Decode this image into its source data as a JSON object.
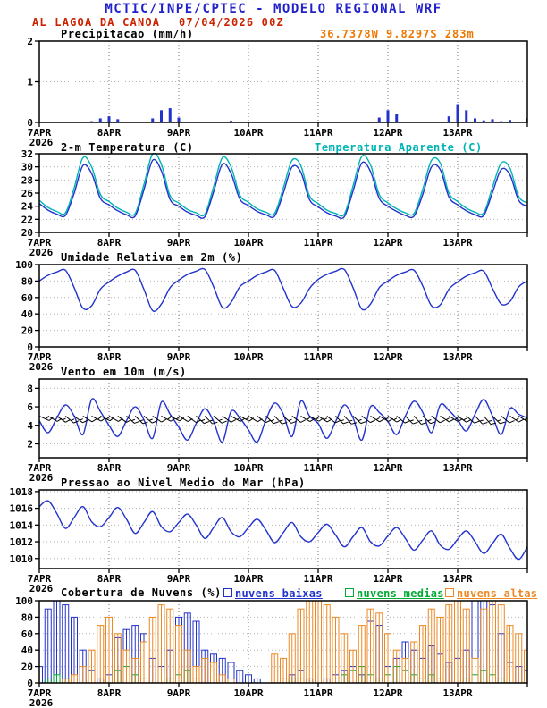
{
  "header": {
    "title": "MCTIC/INPE/CPTEC - MODELO REGIONAL WRF",
    "station": "AL LAGOA DA CANOA",
    "run": "07/04/2026 00Z",
    "location": "36.7378W 9.8297S 283m"
  },
  "colors": {
    "series_blue": "#2233cc",
    "apparent_cyan": "#00b4b4",
    "cloud_mid_green": "#00aa33",
    "cloud_high_orange": "#ee8822",
    "title_blue": "#2121cc",
    "station_red": "#cc2200",
    "run_red": "#cc2200",
    "location_orange": "#ee7700",
    "frame_black": "#000000"
  },
  "x_axis": {
    "day_labels": [
      "7APR",
      "8APR",
      "9APR",
      "10APR",
      "11APR",
      "12APR",
      "13APR"
    ],
    "year_label": "2026",
    "span_hours": 168,
    "step_hours": 3
  },
  "chart_data": [
    {
      "id": "precip",
      "type": "bar",
      "title": "Precipitacao (mm/h)",
      "ylim": [
        0,
        2
      ],
      "yticks": [
        0,
        1,
        2
      ],
      "values": [
        0,
        0,
        0,
        0,
        0,
        0,
        0.03,
        0.1,
        0.15,
        0.08,
        0,
        0,
        0,
        0.1,
        0.3,
        0.35,
        0.12,
        0,
        0,
        0,
        0,
        0,
        0.04,
        0,
        0,
        0,
        0,
        0,
        0,
        0,
        0,
        0,
        0,
        0,
        0,
        0,
        0,
        0,
        0,
        0.12,
        0.3,
        0.2,
        0,
        0,
        0,
        0,
        0,
        0.15,
        0.45,
        0.3,
        0.1,
        0.05,
        0.08,
        0.03,
        0.06,
        0.02,
        0.1
      ]
    },
    {
      "id": "temp",
      "type": "line",
      "title": "2-m Temperatura (C)",
      "legend": "Temperatura Aparente (C)",
      "ylim": [
        20,
        32
      ],
      "yticks": [
        20,
        22,
        24,
        26,
        28,
        30,
        32
      ],
      "series": [
        {
          "name": "2-m Temperatura (C)",
          "color": "#2233cc",
          "values": [
            24.4,
            23.4,
            22.8,
            22.6,
            26.0,
            30.2,
            29.0,
            25.2,
            24.2,
            23.3,
            22.7,
            22.5,
            26.5,
            31.0,
            29.4,
            25.0,
            24.0,
            23.1,
            22.6,
            22.4,
            26.2,
            30.4,
            29.0,
            25.1,
            24.1,
            23.2,
            22.7,
            22.5,
            26.0,
            30.0,
            29.2,
            25.0,
            23.9,
            23.0,
            22.5,
            22.4,
            26.3,
            30.6,
            29.3,
            25.2,
            24.0,
            23.2,
            22.6,
            22.5,
            25.8,
            30.0,
            29.6,
            25.4,
            24.2,
            23.3,
            22.7,
            22.6,
            26.1,
            29.6,
            28.8,
            24.9,
            24.0
          ]
        },
        {
          "name": "Temperatura Aparente (C)",
          "color": "#00b4b4",
          "values": [
            24.9,
            23.8,
            23.2,
            23.0,
            26.8,
            31.4,
            30.0,
            25.8,
            24.7,
            23.7,
            23.1,
            22.9,
            27.3,
            32.0,
            30.4,
            25.6,
            24.5,
            23.5,
            23.0,
            22.8,
            27.0,
            31.4,
            30.0,
            25.7,
            24.6,
            23.6,
            23.1,
            22.9,
            26.8,
            31.0,
            30.2,
            25.6,
            24.4,
            23.4,
            22.9,
            22.8,
            27.1,
            31.6,
            30.3,
            25.8,
            24.5,
            23.6,
            23.0,
            22.9,
            26.6,
            31.0,
            30.6,
            26.0,
            24.7,
            23.7,
            23.1,
            23.0,
            26.9,
            30.6,
            29.8,
            25.5,
            24.5
          ]
        }
      ]
    },
    {
      "id": "rh",
      "type": "line",
      "title": "Umidade Relativa em 2m (%)",
      "ylim": [
        0,
        100
      ],
      "yticks": [
        0,
        20,
        40,
        60,
        80,
        100
      ],
      "values": [
        80,
        87,
        91,
        93,
        72,
        47,
        50,
        70,
        79,
        86,
        91,
        93,
        70,
        44,
        52,
        72,
        81,
        88,
        92,
        94,
        73,
        48,
        54,
        73,
        80,
        87,
        91,
        93,
        71,
        49,
        53,
        71,
        82,
        88,
        92,
        94,
        72,
        46,
        52,
        72,
        80,
        87,
        91,
        93,
        74,
        50,
        51,
        70,
        79,
        86,
        90,
        92,
        71,
        52,
        55,
        73,
        80
      ]
    },
    {
      "id": "wind",
      "type": "line+barbs",
      "title": "Vento em 10m (m/s)",
      "ylim": [
        0.5,
        9
      ],
      "yticks": [
        2,
        4,
        6,
        8
      ],
      "barb_level": 5,
      "values": [
        4.5,
        3.2,
        4.8,
        6.2,
        5.0,
        3.0,
        6.8,
        5.5,
        4.0,
        2.8,
        4.5,
        6.0,
        4.6,
        2.6,
        6.5,
        5.2,
        3.8,
        2.4,
        4.2,
        5.8,
        4.4,
        2.2,
        5.5,
        4.8,
        3.5,
        2.2,
        4.6,
        6.4,
        5.2,
        2.8,
        6.6,
        5.0,
        4.2,
        2.6,
        4.4,
        6.2,
        4.8,
        2.4,
        6.0,
        5.4,
        4.4,
        3.0,
        5.0,
        6.6,
        5.4,
        3.2,
        6.2,
        5.6,
        4.6,
        3.4,
        5.2,
        6.8,
        5.0,
        3.0,
        5.8,
        5.2,
        4.8
      ],
      "dirs_deg": [
        115,
        120,
        125,
        130,
        128,
        122,
        118,
        116,
        120,
        126,
        132,
        135,
        130,
        124,
        119,
        117,
        121,
        127,
        133,
        136,
        131,
        125,
        120,
        118,
        122,
        128,
        134,
        137,
        132,
        126,
        121,
        119,
        123,
        129,
        135,
        138,
        133,
        127,
        122,
        120,
        124,
        130,
        136,
        139,
        134,
        128,
        123,
        121,
        125,
        131,
        137,
        140,
        135,
        129,
        124,
        122,
        126
      ]
    },
    {
      "id": "pressure",
      "type": "line",
      "title": "Pressao ao Nivel Medio do Mar (hPa)",
      "ylim": [
        1008.8,
        1018.2
      ],
      "yticks": [
        1010,
        1012,
        1014,
        1016,
        1018
      ],
      "values": [
        1016.2,
        1016.9,
        1015.4,
        1013.6,
        1014.9,
        1016.2,
        1014.4,
        1013.8,
        1014.9,
        1016.1,
        1014.7,
        1013.0,
        1014.3,
        1015.6,
        1013.8,
        1013.2,
        1014.3,
        1015.3,
        1014.0,
        1012.4,
        1013.7,
        1014.9,
        1013.2,
        1012.6,
        1013.7,
        1014.7,
        1013.4,
        1011.9,
        1013.1,
        1014.3,
        1012.6,
        1012.0,
        1013.1,
        1014.1,
        1012.8,
        1011.4,
        1012.6,
        1013.7,
        1012.0,
        1011.5,
        1012.7,
        1013.7,
        1012.4,
        1011.0,
        1012.2,
        1013.3,
        1011.6,
        1011.1,
        1012.3,
        1013.3,
        1012.0,
        1010.6,
        1011.8,
        1012.9,
        1011.2,
        1009.9,
        1011.4
      ]
    },
    {
      "id": "clouds",
      "type": "bars3",
      "title": "Cobertura de Nuvens (%)",
      "ylim": [
        0,
        100
      ],
      "yticks": [
        0,
        20,
        40,
        60,
        80,
        100
      ],
      "legend": [
        {
          "label": "nuvens baixas",
          "color": "#2233cc"
        },
        {
          "label": "nuvens medias",
          "color": "#00aa33"
        },
        {
          "label": "nuvens altas",
          "color": "#ee8822"
        }
      ],
      "series": [
        {
          "name": "nuvens baixas",
          "color": "#2233cc",
          "values": [
            20,
            90,
            100,
            95,
            80,
            40,
            15,
            5,
            10,
            55,
            65,
            70,
            60,
            30,
            20,
            40,
            80,
            85,
            75,
            40,
            35,
            30,
            25,
            15,
            10,
            5,
            0,
            0,
            5,
            10,
            15,
            5,
            0,
            5,
            10,
            15,
            20,
            10,
            75,
            70,
            20,
            30,
            50,
            40,
            30,
            45,
            35,
            25,
            30,
            40,
            100,
            100,
            95,
            60,
            25,
            20,
            15
          ]
        },
        {
          "name": "nuvens medias",
          "color": "#00aa33",
          "values": [
            0,
            5,
            10,
            5,
            0,
            0,
            0,
            0,
            0,
            15,
            20,
            10,
            5,
            0,
            0,
            5,
            10,
            15,
            5,
            0,
            0,
            0,
            0,
            0,
            0,
            0,
            0,
            0,
            0,
            5,
            5,
            0,
            0,
            0,
            5,
            10,
            15,
            20,
            10,
            5,
            10,
            20,
            15,
            10,
            5,
            10,
            5,
            0,
            0,
            5,
            10,
            15,
            10,
            5,
            0,
            0,
            0
          ]
        },
        {
          "name": "nuvens altas",
          "color": "#ee8822",
          "values": [
            0,
            0,
            0,
            5,
            10,
            20,
            40,
            70,
            80,
            60,
            40,
            30,
            50,
            80,
            95,
            90,
            70,
            40,
            20,
            30,
            25,
            10,
            5,
            0,
            0,
            0,
            0,
            35,
            30,
            60,
            90,
            100,
            100,
            95,
            80,
            60,
            40,
            70,
            90,
            85,
            60,
            40,
            30,
            50,
            70,
            90,
            80,
            95,
            100,
            90,
            30,
            90,
            100,
            95,
            70,
            60,
            40
          ]
        }
      ]
    }
  ]
}
